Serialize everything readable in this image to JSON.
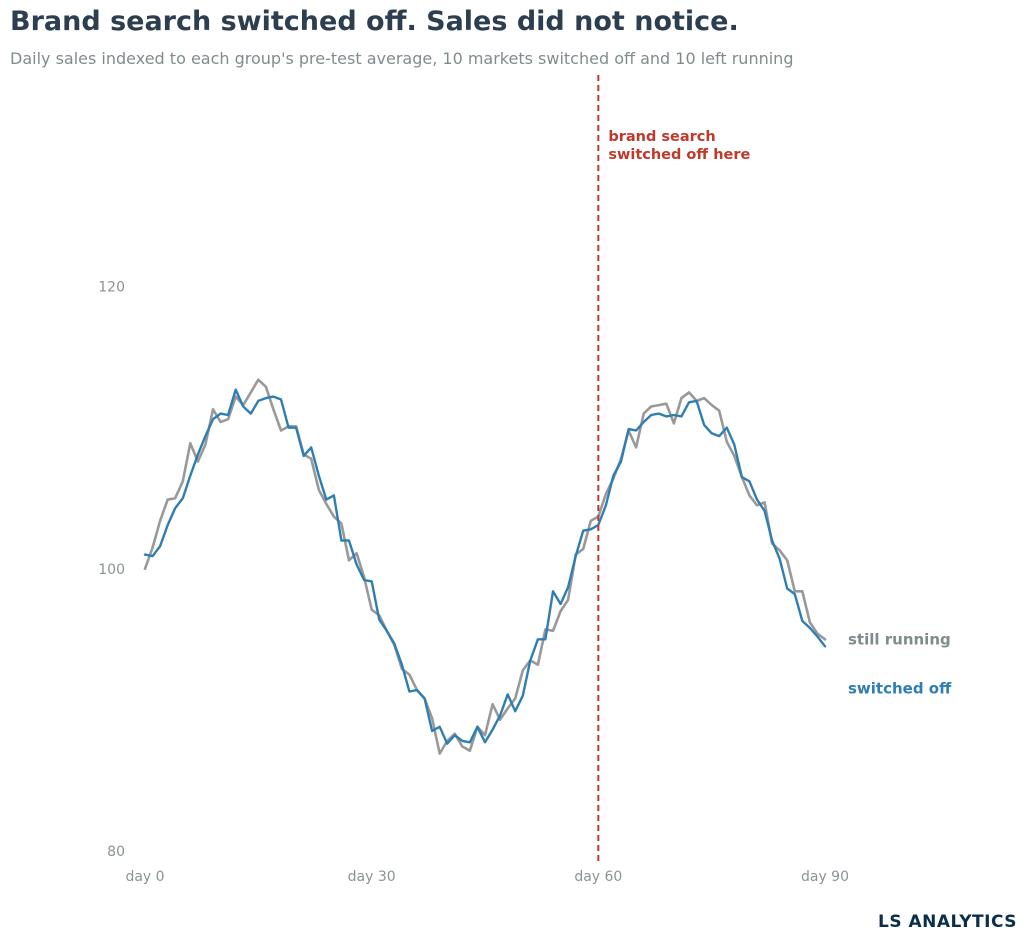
{
  "header": {
    "title": "Brand search switched off. Sales did not notice.",
    "subtitle": "Daily sales indexed to each group's pre-test average, 10 markets switched off and 10 left running"
  },
  "footer": {
    "brand": "LS ANALYTICS"
  },
  "chart_data": {
    "type": "line",
    "title": "Brand search switched off. Sales did not notice.",
    "subtitle": "Daily sales indexed to each group's pre-test average, 10 markets switched off and 10 left running",
    "xlabel": "",
    "ylabel": "",
    "x_range": [
      0,
      90
    ],
    "y_range": [
      79,
      135
    ],
    "x_ticks": [
      0,
      30,
      60,
      90
    ],
    "x_tick_labels": [
      "day 0",
      "day 30",
      "day 60",
      "day 90"
    ],
    "y_ticks": [
      80,
      100,
      120
    ],
    "y_tick_labels": [
      "80",
      "100",
      "120"
    ],
    "grid": false,
    "legend": "direct labels at line ends",
    "x": [
      0,
      1,
      2,
      3,
      4,
      5,
      6,
      7,
      8,
      9,
      10,
      11,
      12,
      13,
      14,
      15,
      16,
      17,
      18,
      19,
      20,
      21,
      22,
      23,
      24,
      25,
      26,
      27,
      28,
      29,
      30,
      31,
      32,
      33,
      34,
      35,
      36,
      37,
      38,
      39,
      40,
      41,
      42,
      43,
      44,
      45,
      46,
      47,
      48,
      49,
      50,
      51,
      52,
      53,
      54,
      55,
      56,
      57,
      58,
      59,
      60,
      61,
      62,
      63,
      64,
      65,
      66,
      67,
      68,
      69,
      70,
      71,
      72,
      73,
      74,
      75,
      76,
      77,
      78,
      79,
      80,
      81,
      82,
      83,
      84,
      85,
      86,
      87,
      88,
      89,
      90
    ],
    "series": [
      {
        "name": "still running",
        "color": "#999999",
        "values": [
          100.0,
          101.5,
          103.4,
          104.9,
          105.0,
          106.2,
          108.9,
          107.6,
          108.8,
          111.3,
          110.4,
          110.6,
          112.2,
          111.6,
          112.5,
          113.4,
          112.9,
          111.3,
          109.8,
          110.1,
          110.1,
          108.1,
          107.8,
          105.6,
          104.6,
          103.7,
          103.2,
          100.6,
          101.1,
          99.4,
          97.1,
          96.7,
          95.6,
          94.6,
          92.9,
          92.5,
          91.4,
          90.8,
          89.4,
          86.9,
          87.8,
          88.3,
          87.4,
          87.1,
          88.8,
          88.2,
          90.4,
          89.3,
          90.1,
          90.8,
          92.8,
          93.5,
          93.2,
          95.7,
          95.6,
          97.0,
          97.8,
          101.0,
          101.4,
          103.4,
          103.7,
          105.3,
          106.4,
          107.8,
          109.8,
          108.6,
          111.0,
          111.5,
          111.6,
          111.7,
          110.3,
          112.1,
          112.5,
          111.9,
          112.1,
          111.6,
          111.2,
          109.0,
          108.0,
          106.5,
          105.2,
          104.5,
          104.7,
          101.8,
          101.3,
          100.6,
          98.4,
          98.4,
          96.2,
          95.4,
          95.0
        ]
      },
      {
        "name": "switched off",
        "color": "#2e7eb4",
        "values": [
          101.0,
          100.9,
          101.6,
          103.1,
          104.3,
          105.0,
          106.6,
          108.1,
          109.4,
          110.6,
          111.0,
          110.9,
          112.7,
          111.5,
          111.0,
          111.9,
          112.1,
          112.2,
          112.0,
          110.0,
          110.0,
          108.0,
          108.6,
          106.6,
          104.9,
          105.2,
          102.0,
          102.0,
          100.3,
          99.2,
          99.1,
          96.4,
          95.6,
          94.7,
          93.2,
          91.3,
          91.4,
          90.8,
          88.5,
          88.8,
          87.6,
          88.2,
          87.8,
          87.7,
          88.8,
          87.7,
          88.6,
          89.6,
          91.1,
          89.9,
          91.0,
          93.5,
          95.0,
          95.0,
          98.4,
          97.5,
          98.7,
          100.9,
          102.7,
          102.8,
          103.1,
          104.5,
          106.6,
          107.6,
          109.9,
          109.8,
          110.4,
          110.9,
          111.0,
          110.8,
          110.9,
          110.8,
          111.8,
          111.9,
          110.2,
          109.6,
          109.4,
          110.0,
          108.8,
          106.5,
          106.2,
          104.9,
          104.1,
          102.0,
          100.7,
          98.6,
          98.2,
          96.3,
          95.8,
          95.2,
          94.5
        ]
      }
    ],
    "annotations": [
      {
        "type": "vline",
        "x": 60,
        "color": "#c0392b",
        "text": [
          "brand search",
          "switched off here"
        ]
      }
    ]
  }
}
